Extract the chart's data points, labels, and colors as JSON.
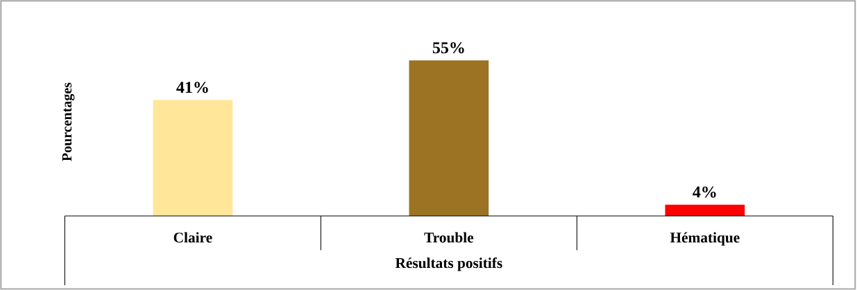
{
  "chart_data": {
    "type": "bar",
    "xlabel": "Résultats positifs",
    "ylabel": "Pourcentages",
    "categories": [
      "Claire",
      "Trouble",
      "Hématique"
    ],
    "values": [
      41,
      55,
      4
    ],
    "colors": [
      "#ffe699",
      "#9c7223",
      "#ff0000"
    ],
    "value_labels": [
      "41%",
      "55%",
      "4%"
    ]
  }
}
